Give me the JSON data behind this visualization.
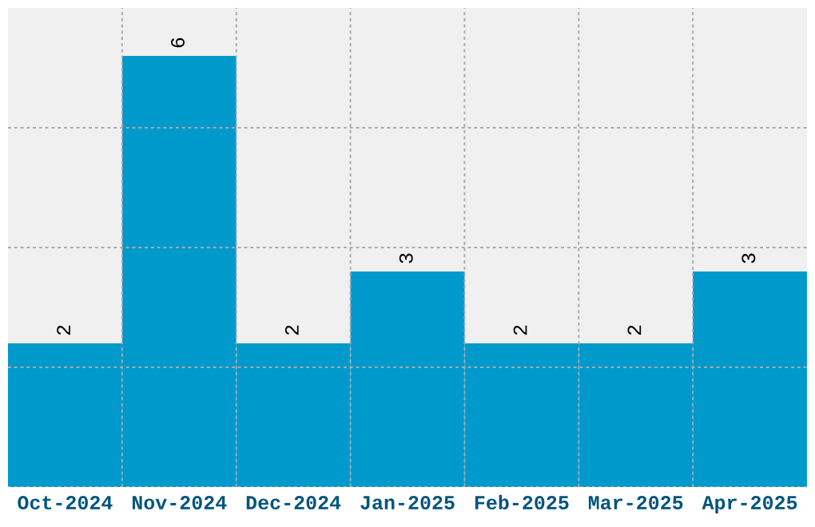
{
  "chart_data": {
    "type": "bar",
    "categories": [
      "Oct-2024",
      "Nov-2024",
      "Dec-2024",
      "Jan-2025",
      "Feb-2025",
      "Mar-2025",
      "Apr-2025"
    ],
    "values": [
      2,
      6,
      2,
      3,
      2,
      2,
      3
    ],
    "color": "#0099cc",
    "data_labels": true,
    "grid": true,
    "tick_labels": "x",
    "ylim": [
      0,
      6.667
    ],
    "yticks": [
      {
        "value": 0,
        "label": null
      },
      {
        "value": 1.667,
        "label": null
      },
      {
        "value": 3.333,
        "label": null
      },
      {
        "value": 5,
        "label": null
      }
    ]
  }
}
